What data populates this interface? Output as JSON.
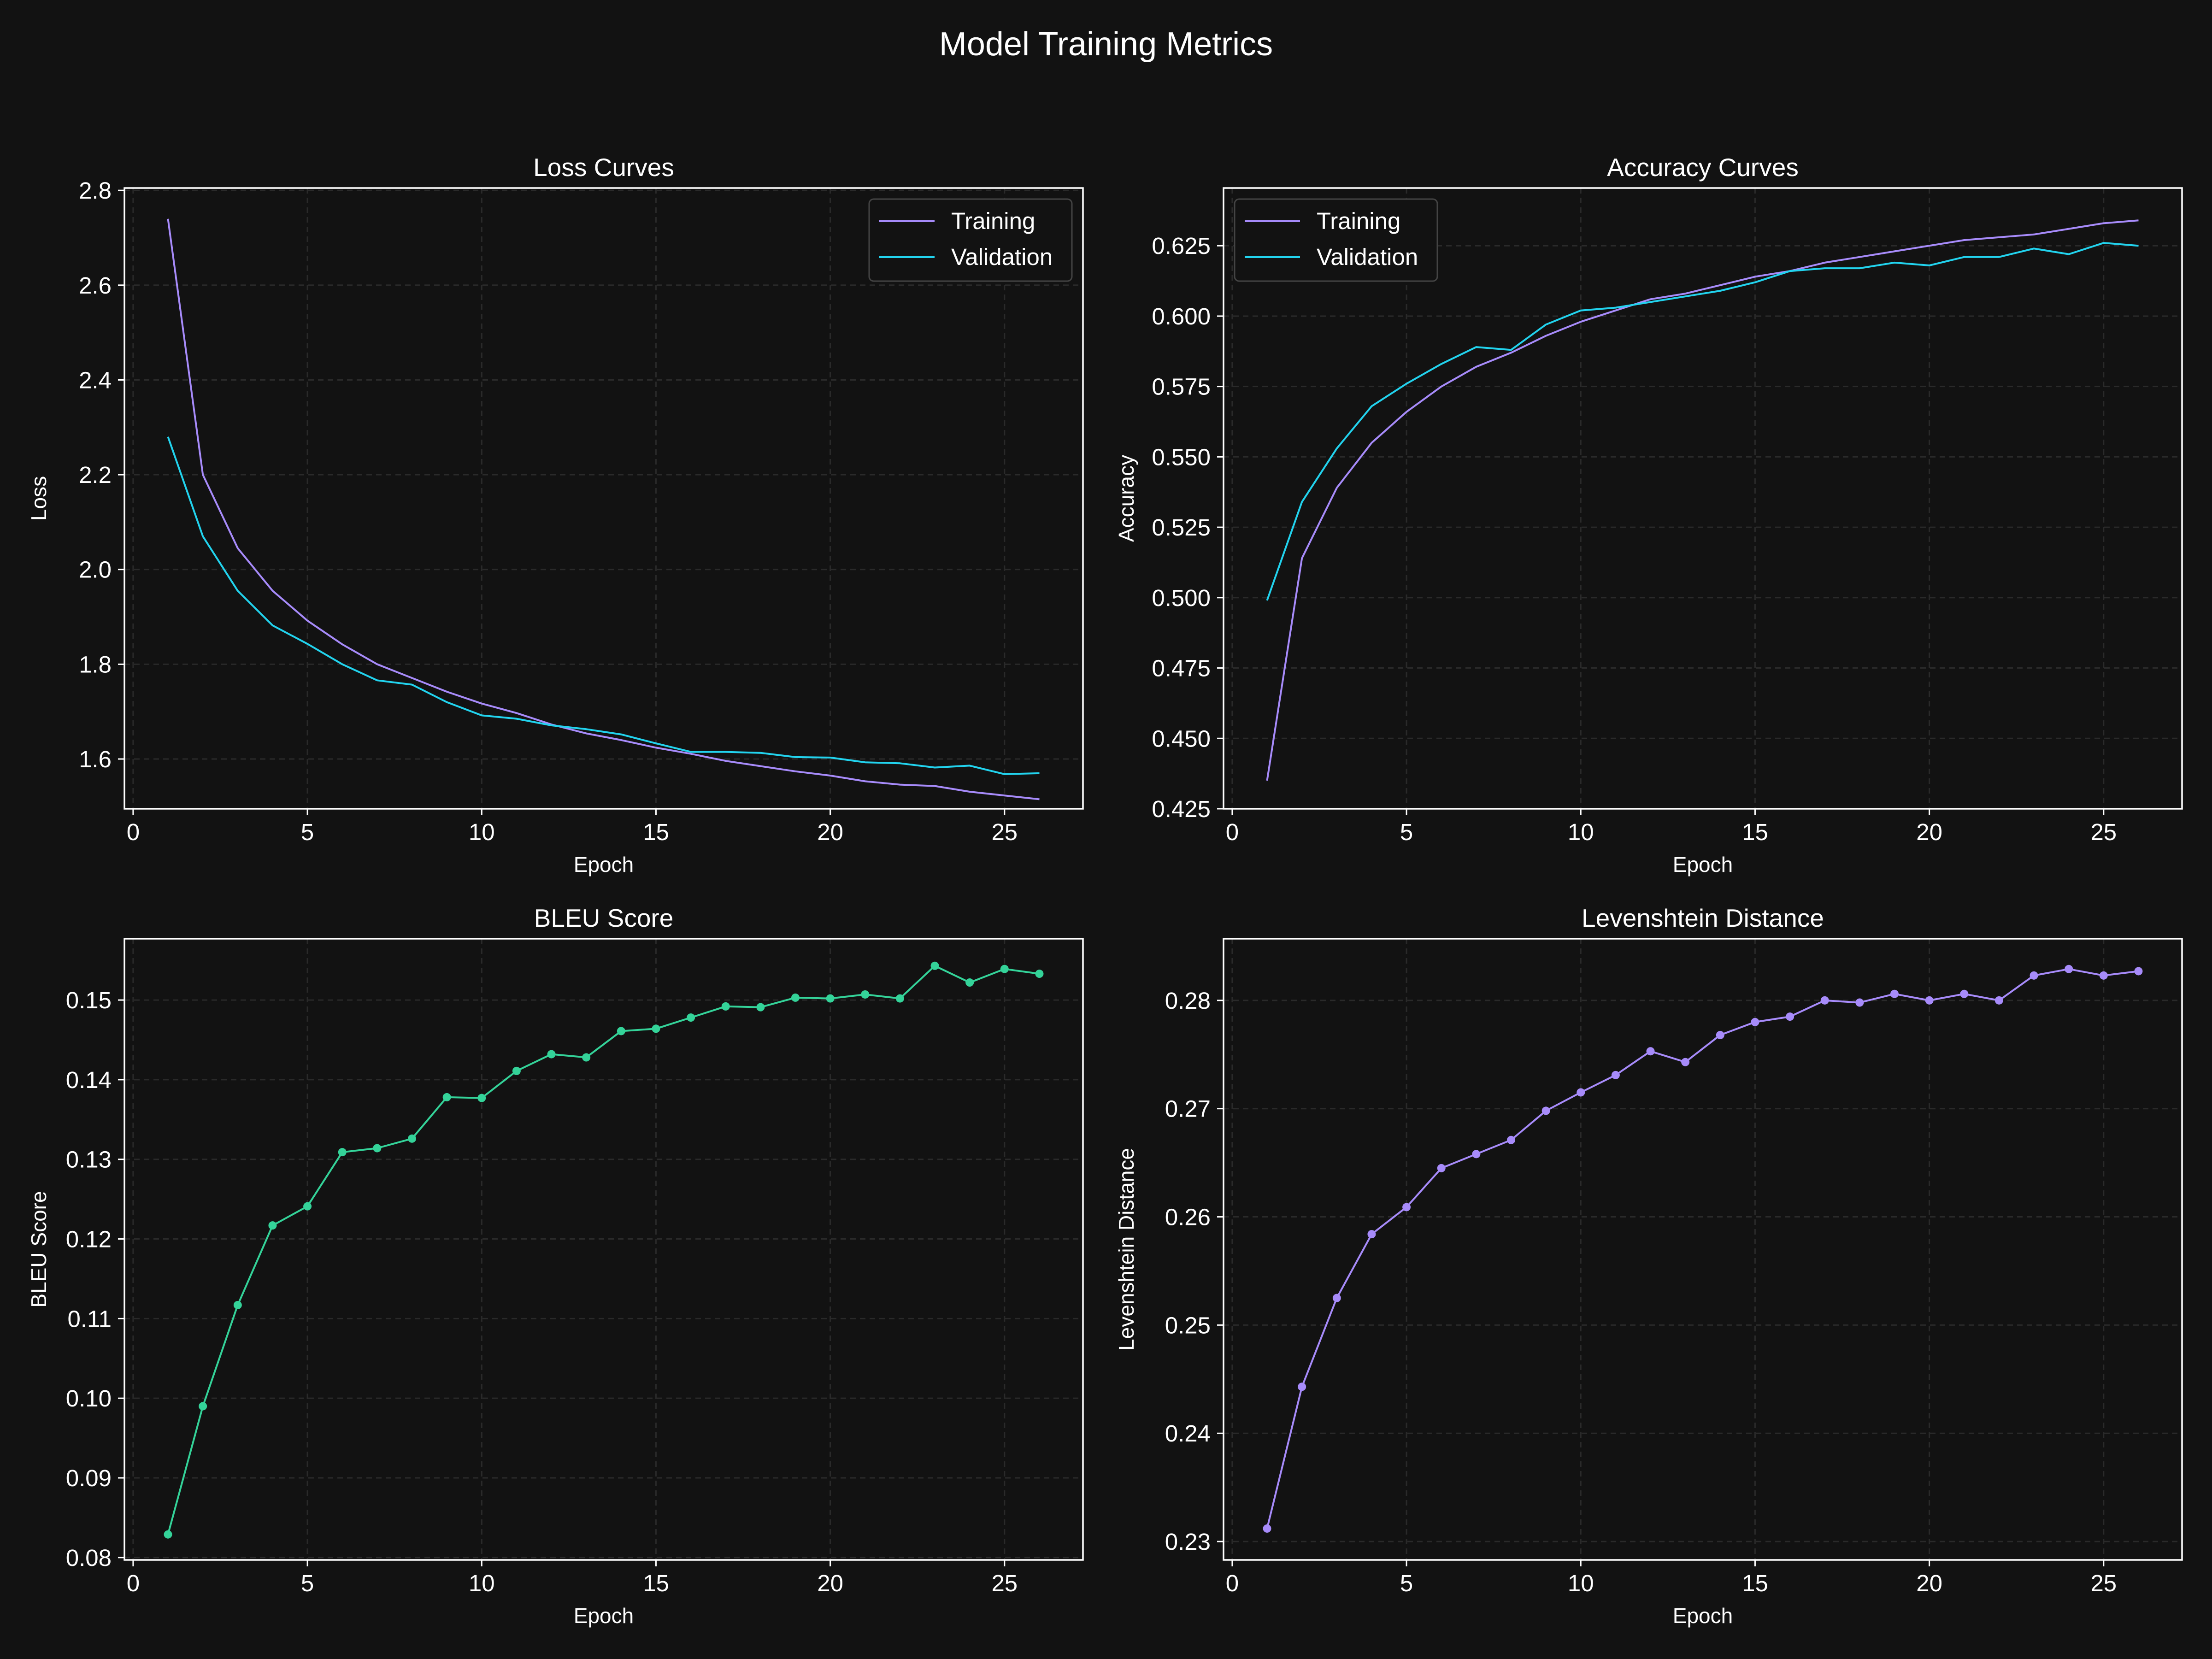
{
  "figure": {
    "title": "Model Training Metrics",
    "colors": {
      "background": "#121212",
      "axes_edge": "#ffffff",
      "grid": "#2a2a2a",
      "training": "#a78bfa",
      "validation": "#22d3ee",
      "bleu": "#34d399",
      "levenshtein": "#a78bfa"
    }
  },
  "chart_data": [
    {
      "type": "line",
      "title": "Loss Curves",
      "xlabel": "Epoch",
      "ylabel": "Loss",
      "x": [
        1,
        2,
        3,
        4,
        5,
        6,
        7,
        8,
        9,
        10,
        11,
        12,
        13,
        14,
        15,
        16,
        17,
        18,
        19,
        20,
        21,
        22,
        23,
        24,
        25,
        26
      ],
      "xlim": [
        -0.25,
        27.25
      ],
      "ylim": [
        1.495,
        2.805
      ],
      "xticks": [
        0,
        5,
        10,
        15,
        20,
        25
      ],
      "yticks": [
        1.6,
        1.8,
        2.0,
        2.2,
        2.4,
        2.6,
        2.8
      ],
      "ytick_labels": [
        "1.6",
        "1.8",
        "2.0",
        "2.2",
        "2.4",
        "2.6",
        "2.8"
      ],
      "grid": true,
      "legend": "top-right",
      "series": [
        {
          "name": "Training",
          "color": "#a78bfa",
          "markers": false,
          "values": [
            2.74,
            2.2,
            2.045,
            1.955,
            1.892,
            1.842,
            1.8,
            1.771,
            1.742,
            1.717,
            1.697,
            1.673,
            1.654,
            1.64,
            1.624,
            1.611,
            1.596,
            1.585,
            1.574,
            1.565,
            1.553,
            1.546,
            1.543,
            1.531,
            1.523,
            1.515
          ]
        },
        {
          "name": "Validation",
          "color": "#22d3ee",
          "markers": false,
          "values": [
            2.28,
            2.07,
            1.955,
            1.882,
            1.843,
            1.8,
            1.766,
            1.757,
            1.72,
            1.692,
            1.685,
            1.671,
            1.663,
            1.652,
            1.633,
            1.615,
            1.615,
            1.613,
            1.604,
            1.603,
            1.593,
            1.591,
            1.582,
            1.586,
            1.568,
            1.57
          ]
        }
      ]
    },
    {
      "type": "line",
      "title": "Accuracy Curves",
      "xlabel": "Epoch",
      "ylabel": "Accuracy",
      "x": [
        1,
        2,
        3,
        4,
        5,
        6,
        7,
        8,
        9,
        10,
        11,
        12,
        13,
        14,
        15,
        16,
        17,
        18,
        19,
        20,
        21,
        22,
        23,
        24,
        25,
        26
      ],
      "xlim": [
        -0.25,
        27.25
      ],
      "ylim": [
        0.425,
        0.6455
      ],
      "xticks": [
        0,
        5,
        10,
        15,
        20,
        25
      ],
      "yticks": [
        0.425,
        0.45,
        0.475,
        0.5,
        0.525,
        0.55,
        0.575,
        0.6,
        0.625
      ],
      "ytick_labels": [
        "0.425",
        "0.450",
        "0.475",
        "0.500",
        "0.525",
        "0.550",
        "0.575",
        "0.600",
        "0.625"
      ],
      "grid": true,
      "legend": "top-left",
      "series": [
        {
          "name": "Training",
          "color": "#a78bfa",
          "markers": false,
          "values": [
            0.435,
            0.514,
            0.539,
            0.555,
            0.566,
            0.575,
            0.582,
            0.587,
            0.593,
            0.598,
            0.602,
            0.606,
            0.608,
            0.611,
            0.614,
            0.616,
            0.619,
            0.621,
            0.623,
            0.625,
            0.627,
            0.628,
            0.629,
            0.631,
            0.633,
            0.634
          ]
        },
        {
          "name": "Validation",
          "color": "#22d3ee",
          "markers": false,
          "values": [
            0.499,
            0.534,
            0.553,
            0.568,
            0.576,
            0.583,
            0.589,
            0.588,
            0.597,
            0.602,
            0.603,
            0.605,
            0.607,
            0.609,
            0.612,
            0.616,
            0.617,
            0.617,
            0.619,
            0.618,
            0.621,
            0.621,
            0.624,
            0.622,
            0.626,
            0.625
          ]
        }
      ]
    },
    {
      "type": "line",
      "title": "BLEU Score",
      "xlabel": "Epoch",
      "ylabel": "BLEU Score",
      "x": [
        1,
        2,
        3,
        4,
        5,
        6,
        7,
        8,
        9,
        10,
        11,
        12,
        13,
        14,
        15,
        16,
        17,
        18,
        19,
        20,
        21,
        22,
        23,
        24,
        25,
        26
      ],
      "xlim": [
        -0.25,
        27.25
      ],
      "ylim": [
        0.0797,
        0.1577
      ],
      "xticks": [
        0,
        5,
        10,
        15,
        20,
        25
      ],
      "yticks": [
        0.08,
        0.09,
        0.1,
        0.11,
        0.12,
        0.13,
        0.14,
        0.15
      ],
      "ytick_labels": [
        "0.08",
        "0.09",
        "0.10",
        "0.11",
        "0.12",
        "0.13",
        "0.14",
        "0.15"
      ],
      "grid": true,
      "legend": null,
      "series": [
        {
          "color": "#34d399",
          "markers": true,
          "values": [
            0.0829,
            0.099,
            0.1117,
            0.1217,
            0.1241,
            0.1309,
            0.1314,
            0.1326,
            0.1378,
            0.1377,
            0.1411,
            0.1432,
            0.1428,
            0.1461,
            0.1464,
            0.1478,
            0.1492,
            0.1491,
            0.1503,
            0.1502,
            0.1507,
            0.1502,
            0.1543,
            0.1522,
            0.1539,
            0.1533
          ]
        }
      ]
    },
    {
      "type": "line",
      "title": "Levenshtein Distance",
      "xlabel": "Epoch",
      "ylabel": "Levenshtein Distance",
      "x": [
        1,
        2,
        3,
        4,
        5,
        6,
        7,
        8,
        9,
        10,
        11,
        12,
        13,
        14,
        15,
        16,
        17,
        18,
        19,
        20,
        21,
        22,
        23,
        24,
        25,
        26
      ],
      "xlim": [
        -0.25,
        27.25
      ],
      "ylim": [
        0.2283,
        0.2857
      ],
      "xticks": [
        0,
        5,
        10,
        15,
        20,
        25
      ],
      "yticks": [
        0.23,
        0.24,
        0.25,
        0.26,
        0.27,
        0.28
      ],
      "ytick_labels": [
        "0.23",
        "0.24",
        "0.25",
        "0.26",
        "0.27",
        "0.28"
      ],
      "grid": true,
      "legend": null,
      "series": [
        {
          "color": "#a78bfa",
          "markers": true,
          "values": [
            0.2312,
            0.2443,
            0.2525,
            0.2584,
            0.2609,
            0.2645,
            0.2658,
            0.2671,
            0.2698,
            0.2715,
            0.2731,
            0.2753,
            0.2743,
            0.2768,
            0.278,
            0.2785,
            0.28,
            0.2798,
            0.2806,
            0.28,
            0.2806,
            0.28,
            0.2823,
            0.2829,
            0.2823,
            0.2827
          ]
        }
      ]
    }
  ]
}
